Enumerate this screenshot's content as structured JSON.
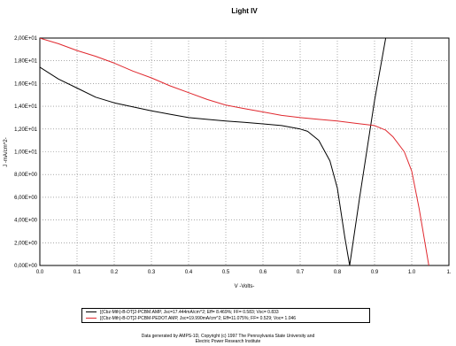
{
  "chart_data": {
    "type": "line",
    "title": "Light IV",
    "xlabel": "V -Volts-",
    "ylabel": "J -mA/cm^2-",
    "xlim": [
      0,
      1.1
    ],
    "ylim": [
      0,
      20
    ],
    "x_ticks": [
      0.0,
      0.1,
      0.2,
      0.3,
      0.4,
      0.5,
      0.6,
      0.7,
      0.8,
      0.9,
      1.0,
      1.1
    ],
    "x_tick_labels": [
      "0.0",
      "0.1",
      "0.2",
      "0.3",
      "0.4",
      "0.5",
      "0.6",
      "0.7",
      "0.8",
      "0.9",
      "1.0",
      "1."
    ],
    "y_ticks": [
      0,
      2,
      4,
      6,
      8,
      10,
      12,
      14,
      16,
      18,
      20
    ],
    "y_tick_labels": [
      "0,00E+00",
      "2,00E+00",
      "4,00E+00",
      "6,00E+00",
      "8,00E+00",
      "1,00E+01",
      "1,20E+01",
      "1,40E+01",
      "1,60E+01",
      "1,80E+01",
      "2,00E+01"
    ],
    "grid": true,
    "legend_position": "bottom",
    "series": [
      {
        "name": "[(Cbz-Mth)-B-DT]2-PCBM.AMP, Jsc=17.444mA/cm^2; Eff= 8.469%; FF= 0.583; Voc= 0.833",
        "color": "#000000",
        "x": [
          0.0,
          0.05,
          0.1,
          0.15,
          0.2,
          0.25,
          0.3,
          0.35,
          0.4,
          0.45,
          0.5,
          0.55,
          0.6,
          0.65,
          0.7,
          0.72,
          0.75,
          0.78,
          0.8,
          0.82,
          0.833,
          0.86,
          0.9,
          0.93
        ],
        "y": [
          17.44,
          16.4,
          15.6,
          14.8,
          14.3,
          13.95,
          13.6,
          13.3,
          13.0,
          12.85,
          12.7,
          12.58,
          12.45,
          12.3,
          12.0,
          11.8,
          11.0,
          9.2,
          6.8,
          2.5,
          0.0,
          6.0,
          14.5,
          20.0
        ]
      },
      {
        "name": "[(Cbz-Mth)-B-DT]2-PCBM-PEDOT.AMP, Jsc=19.990mA/cm^2; Eff=11.075%; FF= 0.529; Voc= 1.046",
        "color": "#e0282e",
        "x": [
          0.0,
          0.05,
          0.1,
          0.15,
          0.2,
          0.25,
          0.3,
          0.35,
          0.4,
          0.45,
          0.5,
          0.55,
          0.6,
          0.65,
          0.7,
          0.75,
          0.8,
          0.85,
          0.9,
          0.93,
          0.95,
          0.98,
          1.0,
          1.02,
          1.046
        ],
        "y": [
          19.99,
          19.5,
          18.9,
          18.4,
          17.8,
          17.1,
          16.5,
          15.8,
          15.2,
          14.6,
          14.1,
          13.8,
          13.5,
          13.2,
          13.0,
          12.85,
          12.7,
          12.5,
          12.3,
          11.9,
          11.3,
          10.0,
          8.3,
          5.0,
          0.0
        ]
      }
    ],
    "footer_lines": [
      "Data generated by AMPS-1D, Copyright (c) 1997 The Pennsylvania State University and",
      "Electric Power Research Institute"
    ]
  }
}
